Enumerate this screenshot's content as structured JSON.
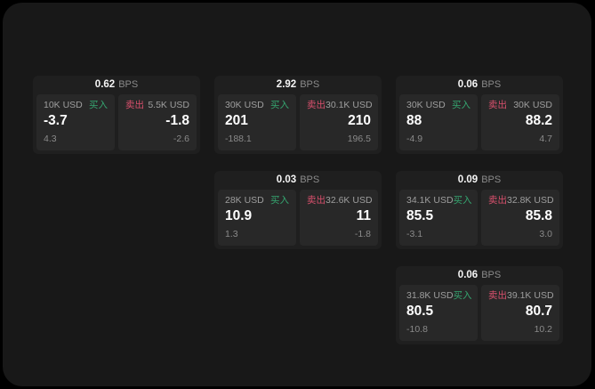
{
  "labels": {
    "buy": "买入",
    "sell": "卖出",
    "bps": "BPS"
  },
  "colors": {
    "page_bg": "#000000",
    "panel_bg": "#181818",
    "card_bg": "#1f1f1f",
    "cell_bg": "#282828",
    "buy_green": "#35a570",
    "sell_red": "#d9506d",
    "text_bright": "#f5f5f5",
    "text_dim": "#9e9e9e",
    "text_faint": "#8a8a8a"
  },
  "cards": [
    {
      "row": 1,
      "col": 1,
      "bps": "0.62",
      "buy": {
        "amount": "10K USD",
        "price": "-3.7",
        "delta": "4.3"
      },
      "sell": {
        "amount": "5.5K USD",
        "price": "-1.8",
        "delta": "-2.6"
      }
    },
    {
      "row": 1,
      "col": 2,
      "bps": "2.92",
      "buy": {
        "amount": "30K USD",
        "price": "201",
        "delta": "-188.1"
      },
      "sell": {
        "amount": "30.1K USD",
        "price": "210",
        "delta": "196.5"
      }
    },
    {
      "row": 1,
      "col": 3,
      "bps": "0.06",
      "buy": {
        "amount": "30K USD",
        "price": "88",
        "delta": "-4.9"
      },
      "sell": {
        "amount": "30K USD",
        "price": "88.2",
        "delta": "4.7"
      }
    },
    {
      "row": 2,
      "col": 2,
      "bps": "0.03",
      "buy": {
        "amount": "28K USD",
        "price": "10.9",
        "delta": "1.3"
      },
      "sell": {
        "amount": "32.6K USD",
        "price": "11",
        "delta": "-1.8"
      }
    },
    {
      "row": 2,
      "col": 3,
      "bps": "0.09",
      "buy": {
        "amount": "34.1K USD",
        "price": "85.5",
        "delta": "-3.1"
      },
      "sell": {
        "amount": "32.8K USD",
        "price": "85.8",
        "delta": "3.0"
      }
    },
    {
      "row": 3,
      "col": 3,
      "bps": "0.06",
      "buy": {
        "amount": "31.8K USD",
        "price": "80.5",
        "delta": "-10.8"
      },
      "sell": {
        "amount": "39.1K USD",
        "price": "80.7",
        "delta": "10.2"
      }
    }
  ]
}
